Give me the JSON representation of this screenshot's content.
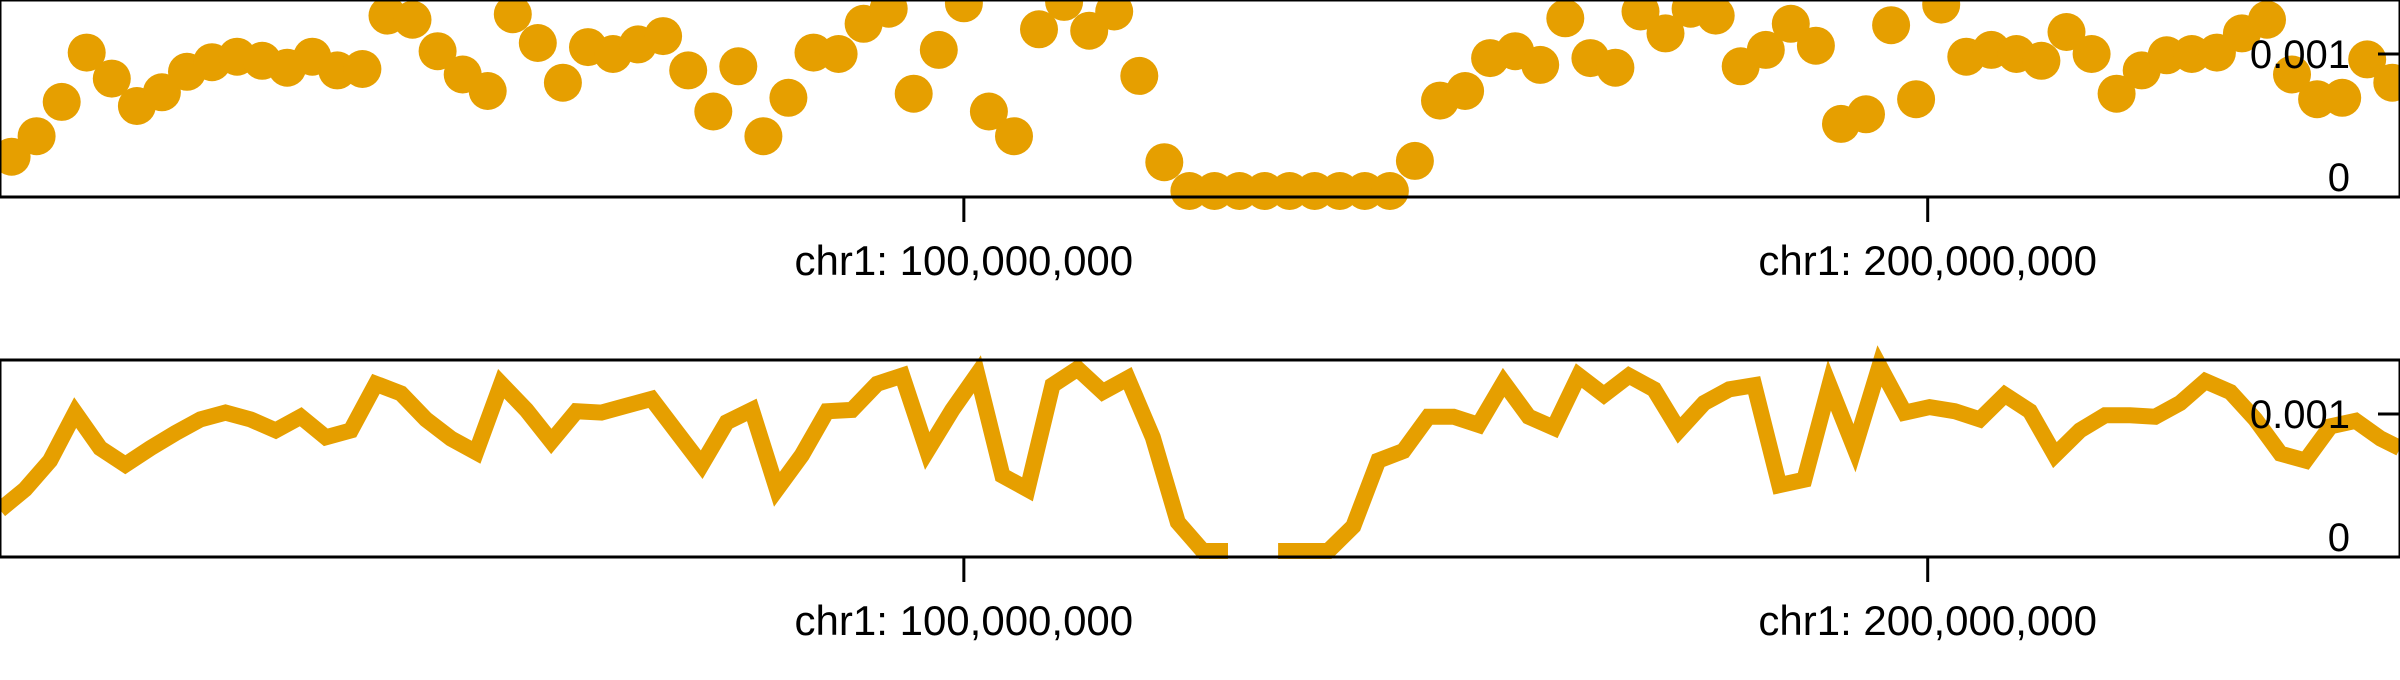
{
  "colors": {
    "series": "#e69f00",
    "axis": "#000000",
    "background": "#ffffff"
  },
  "chart_data": [
    {
      "type": "scatter",
      "x_unit": "chr1 position (bp)",
      "xlim": [
        0,
        249000000
      ],
      "ylim": [
        0,
        0.00135
      ],
      "y_ticks": [
        0,
        0.001
      ],
      "y_tick_labels": [
        "0",
        "0.001"
      ],
      "x_ticks": [
        100000000,
        200000000
      ],
      "x_tick_labels": [
        "chr1: 100,000,000",
        "chr1: 200,000,000"
      ],
      "y_axis_side": "right",
      "grid": false,
      "legend": "none",
      "series": [
        {
          "x": [
            1200000,
            3800000,
            6400000,
            9000000,
            11600000,
            14200000,
            16800000,
            19400000,
            22000000,
            24600000,
            27200000,
            29800000,
            32400000,
            35000000,
            37600000,
            40200000,
            42800000,
            45400000,
            48000000,
            50600000,
            53200000,
            55800000,
            58400000,
            61000000,
            63600000,
            66200000,
            68800000,
            71400000,
            74000000,
            76600000,
            79200000,
            81800000,
            84400000,
            87000000,
            89600000,
            92200000,
            94800000,
            97400000,
            100000000,
            102600000,
            105200000,
            107800000,
            110400000,
            113000000,
            115600000,
            118200000,
            120800000,
            123400000,
            126000000,
            128600000,
            131200000,
            133800000,
            136400000,
            139000000,
            141600000,
            144200000,
            146800000,
            149400000,
            152000000,
            154600000,
            157200000,
            159800000,
            162400000,
            165000000,
            167600000,
            170200000,
            172800000,
            175400000,
            178000000,
            180600000,
            183200000,
            185800000,
            188400000,
            191000000,
            193600000,
            196200000,
            198800000,
            201400000,
            204000000,
            206600000,
            209200000,
            211800000,
            214400000,
            217000000,
            219600000,
            222200000,
            224800000,
            227400000,
            230000000,
            232600000,
            235200000,
            237800000,
            240400000,
            243000000,
            245600000,
            248200000
          ],
          "y": [
            0.00025,
            0.0004,
            0.00065,
            0.00101,
            0.00082,
            0.00062,
            0.00072,
            0.00087,
            0.00094,
            0.00098,
            0.00095,
            0.0009,
            0.00098,
            0.00088,
            0.00089,
            0.00128,
            0.00125,
            0.00102,
            0.00085,
            0.00073,
            0.00129,
            0.00108,
            0.00079,
            0.00105,
            0.001,
            0.00107,
            0.00113,
            0.00088,
            0.00058,
            0.00091,
            0.0004,
            0.00068,
            0.00101,
            0.001,
            0.00122,
            0.00133,
            0.00071,
            0.00103,
            0.00137,
            0.00058,
            0.0004,
            0.00118,
            0.00138,
            0.00117,
            0.00131,
            0.00084,
            0.00021,
            0.0,
            0.0,
            0.0,
            0.0,
            0.0,
            0.0,
            0.0,
            0.0,
            0.0,
            0.00022,
            0.00066,
            0.00073,
            0.00097,
            0.00102,
            0.00092,
            0.00126,
            0.00097,
            0.0009,
            0.00131,
            0.00115,
            0.00133,
            0.00128,
            0.00091,
            0.00103,
            0.00122,
            0.00106,
            0.00049,
            0.00056,
            0.00121,
            0.00067,
            0.00136,
            0.00098,
            0.00103,
            0.001,
            0.00095,
            0.00116,
            0.001,
            0.00071,
            0.00088,
            0.00099,
            0.001,
            0.00101,
            0.00115,
            0.00125,
            0.00085,
            0.00067,
            0.00068,
            0.00096,
            0.00079
          ]
        }
      ]
    },
    {
      "type": "line",
      "x_unit": "chr1 position (bp)",
      "xlim": [
        0,
        249000000
      ],
      "ylim": [
        0,
        0.00135
      ],
      "y_ticks": [
        0,
        0.001
      ],
      "y_tick_labels": [
        "0",
        "0.001"
      ],
      "x_ticks": [
        100000000,
        200000000
      ],
      "x_tick_labels": [
        "chr1: 100,000,000",
        "chr1: 200,000,000"
      ],
      "y_axis_side": "right",
      "grid": false,
      "legend": "none",
      "series": [
        {
          "segments": [
            {
              "x": [
                0,
                2600000,
                5200000,
                7800000,
                10400000,
                13000000,
                15600000,
                18200000,
                20800000,
                23400000,
                26000000,
                28600000,
                31200000,
                33800000,
                36400000,
                39000000,
                41600000,
                44200000,
                46800000,
                49400000,
                52000000,
                54600000,
                57200000,
                59800000,
                62400000,
                65000000,
                67600000,
                70200000,
                72800000,
                75400000,
                78000000,
                80600000,
                83200000,
                85800000,
                88400000,
                91000000,
                93600000,
                96200000,
                98800000,
                101400000,
                104000000,
                106600000,
                109200000,
                111800000,
                114400000,
                117000000,
                119600000,
                122200000,
                124800000,
                127400000
              ],
              "y": [
                0.0003,
                0.00045,
                0.00066,
                0.00101,
                0.00075,
                0.00063,
                0.00075,
                0.00086,
                0.00096,
                0.00101,
                0.00096,
                0.00088,
                0.00098,
                0.00083,
                0.00088,
                0.00122,
                0.00115,
                0.00096,
                0.00082,
                0.00072,
                0.00122,
                0.00103,
                0.0008,
                0.00102,
                0.00101,
                0.00106,
                0.00111,
                0.00087,
                0.00063,
                0.00094,
                0.00103,
                0.00045,
                0.0007,
                0.00102,
                0.00103,
                0.00122,
                0.00128,
                0.00073,
                0.00103,
                0.00129,
                0.00055,
                0.00045,
                0.00121,
                0.00133,
                0.00116,
                0.00126,
                0.00083,
                0.00021,
                0.0,
                0.0
              ]
            },
            {
              "x": [
                132600000,
                135200000,
                137800000,
                140400000,
                143000000,
                145600000,
                148200000,
                150800000,
                153400000,
                156000000,
                158600000,
                161200000,
                163800000,
                166400000,
                169000000,
                171600000,
                174200000,
                176800000,
                179400000,
                182000000,
                184600000,
                187200000,
                189800000,
                192400000,
                195000000,
                197600000,
                200200000,
                202800000,
                205400000,
                208000000,
                210600000,
                213200000,
                215800000,
                218400000,
                221000000,
                223600000,
                226200000,
                228800000,
                231400000,
                234000000,
                236600000,
                239200000,
                241800000,
                244400000,
                247000000,
                249000000
              ],
              "y": [
                0.0,
                0.0,
                0.0,
                0.00018,
                0.00066,
                0.00073,
                0.00098,
                0.00098,
                0.00092,
                0.00123,
                0.00098,
                0.0009,
                0.00128,
                0.00114,
                0.00128,
                0.00118,
                0.00088,
                0.00108,
                0.00118,
                0.00121,
                0.00048,
                0.00052,
                0.00121,
                0.00075,
                0.00135,
                0.00101,
                0.00105,
                0.00102,
                0.00096,
                0.00114,
                0.00102,
                0.0007,
                0.00088,
                0.00099,
                0.00099,
                0.00098,
                0.00108,
                0.00124,
                0.00116,
                0.00096,
                0.00071,
                0.00066,
                0.00091,
                0.00095,
                0.00082,
                0.00075
              ]
            }
          ]
        }
      ]
    }
  ]
}
